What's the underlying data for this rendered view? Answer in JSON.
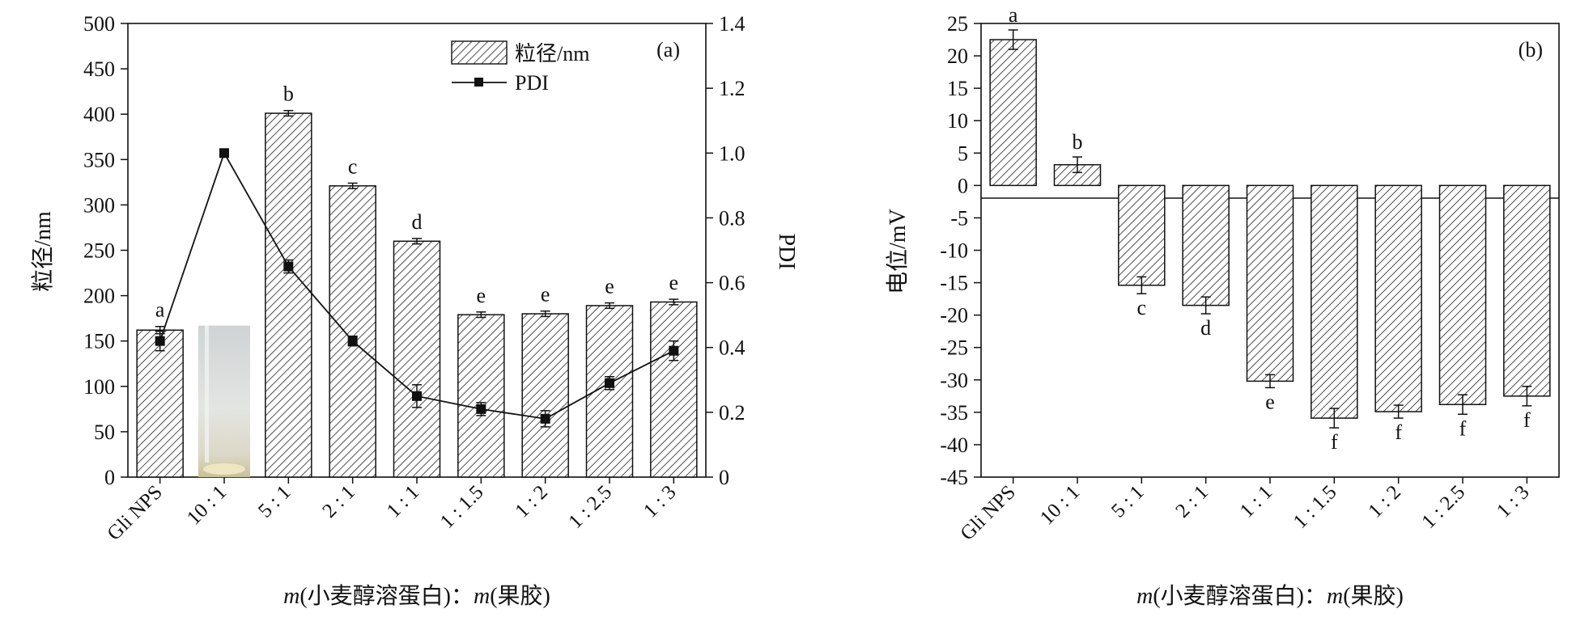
{
  "chart_data": [
    {
      "panel": "(a)",
      "type": "bar",
      "categories": [
        "Gli NPS",
        "10 : 1",
        "5 : 1",
        "2 : 1",
        "1 : 1",
        "1 : 1.5",
        "1 : 2",
        "1 : 2.5",
        "1 : 3"
      ],
      "xlabel_italic": "m",
      "xlabel_1": "(小麦醇溶蛋白)：",
      "xlabel_2": "(果胶)",
      "ylabel": "粒径/nm",
      "y2label": "PDI",
      "ylim": [
        0,
        500
      ],
      "y2lim": [
        0,
        1.4
      ],
      "yticks": [
        0,
        50,
        100,
        150,
        200,
        250,
        300,
        350,
        400,
        450,
        500
      ],
      "y2ticks": [
        "0",
        "0.2",
        "0.4",
        "0.6",
        "0.8",
        "1.0",
        "1.2",
        "1.4"
      ],
      "series": [
        {
          "name": "粒径/nm",
          "kind": "bar",
          "values": [
            162,
            null,
            401,
            321,
            260,
            179,
            180,
            189,
            193
          ],
          "errors": [
            4,
            null,
            3,
            3,
            3,
            3,
            3,
            3,
            3
          ],
          "labels": [
            "a",
            "",
            "b",
            "c",
            "d",
            "e",
            "e",
            "e",
            "e"
          ]
        },
        {
          "name": "PDI",
          "kind": "line",
          "values": [
            0.42,
            1.0,
            0.65,
            0.42,
            0.25,
            0.21,
            0.18,
            0.29,
            0.39
          ],
          "errors": [
            0.03,
            0,
            0.02,
            0.015,
            0.035,
            0.02,
            0.025,
            0.02,
            0.03
          ]
        }
      ],
      "inset_photo_category": "10 : 1",
      "legend": "top-center",
      "grid": false
    },
    {
      "panel": "(b)",
      "type": "bar",
      "categories": [
        "Gli NPS",
        "10 : 1",
        "5 : 1",
        "2 : 1",
        "1 : 1",
        "1 : 1.5",
        "1 : 2",
        "1 : 2.5",
        "1 : 3"
      ],
      "xlabel_italic": "m",
      "xlabel_1": "(小麦醇溶蛋白)：",
      "xlabel_2": "(果胶)",
      "ylabel": "电位/mV",
      "ylim": [
        -45,
        25
      ],
      "yticks": [
        25,
        20,
        15,
        10,
        5,
        0,
        -5,
        -10,
        -15,
        -20,
        -25,
        -30,
        -35,
        -40,
        -45
      ],
      "series": [
        {
          "name": "电位/mV",
          "kind": "bar",
          "values": [
            22.5,
            3.2,
            -15.4,
            -18.5,
            -30.2,
            -35.9,
            -34.9,
            -33.8,
            -32.5
          ],
          "errors": [
            1.5,
            1.2,
            1.3,
            1.3,
            1.0,
            1.5,
            1.0,
            1.5,
            1.5
          ],
          "labels": [
            "a",
            "b",
            "c",
            "d",
            "e",
            "f",
            "f",
            "f",
            "f"
          ]
        }
      ],
      "grid": false
    }
  ]
}
